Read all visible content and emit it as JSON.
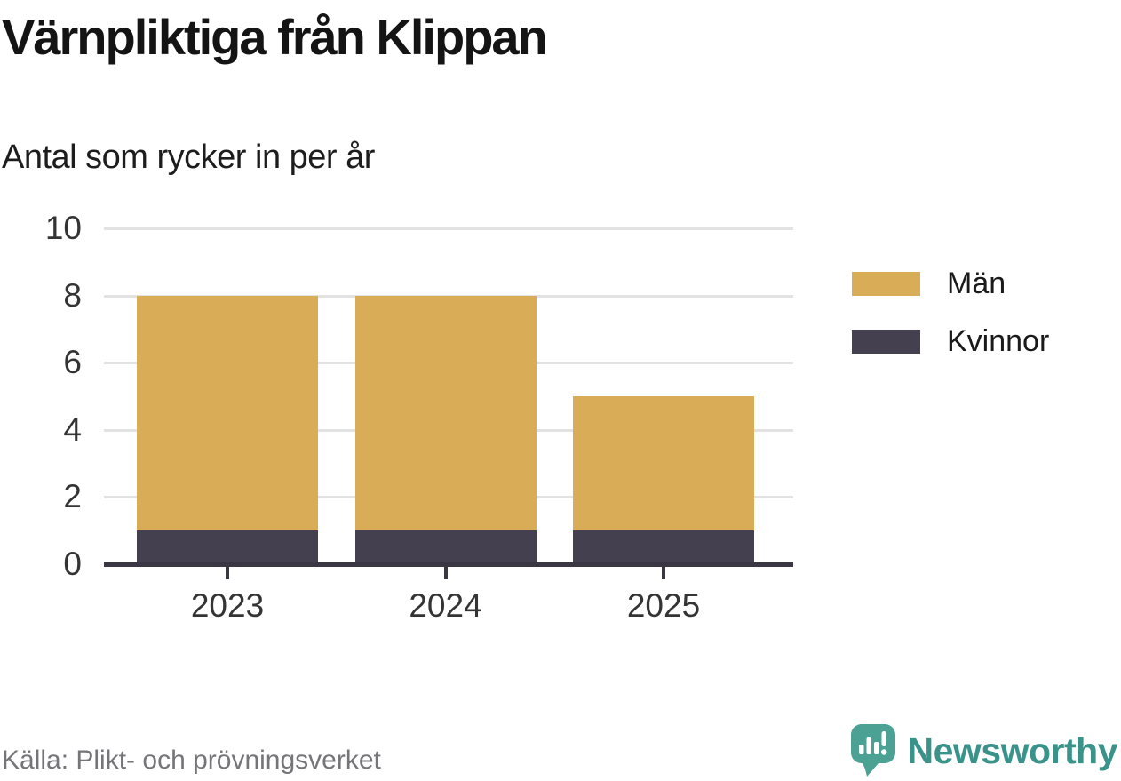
{
  "title": "Värnpliktiga från Klippan",
  "subtitle": "Antal som rycker in per år",
  "source": "Källa: Plikt- och prövningsverket",
  "brand": {
    "name": "Newsworthy",
    "wordmark_color": "#3a938a",
    "icon_color": "#4ba294",
    "icon_name": "newsworthy-speech-bubble-chart-icon"
  },
  "colors": {
    "men": "#d9ac57",
    "women": "#444050",
    "axis": "#3a3642",
    "gridline": "#e2e2e2",
    "tick_label": "#343434"
  },
  "chart_data": {
    "type": "bar",
    "stacked": true,
    "title": "Värnpliktiga från Klippan",
    "subtitle": "Antal som rycker in per år",
    "categories": [
      "2023",
      "2024",
      "2025"
    ],
    "series": [
      {
        "name": "Män",
        "values": [
          7,
          7,
          4
        ],
        "color": "#d9ac57"
      },
      {
        "name": "Kvinnor",
        "values": [
          1,
          1,
          1
        ],
        "color": "#444050"
      }
    ],
    "totals": [
      8,
      8,
      5
    ],
    "xlabel": "",
    "ylabel": "",
    "ylim": [
      0,
      10
    ],
    "yticks": [
      0,
      2,
      4,
      6,
      8,
      10
    ],
    "grid": true,
    "legend_position": "right",
    "source": "Källa: Plikt- och prövningsverket"
  }
}
